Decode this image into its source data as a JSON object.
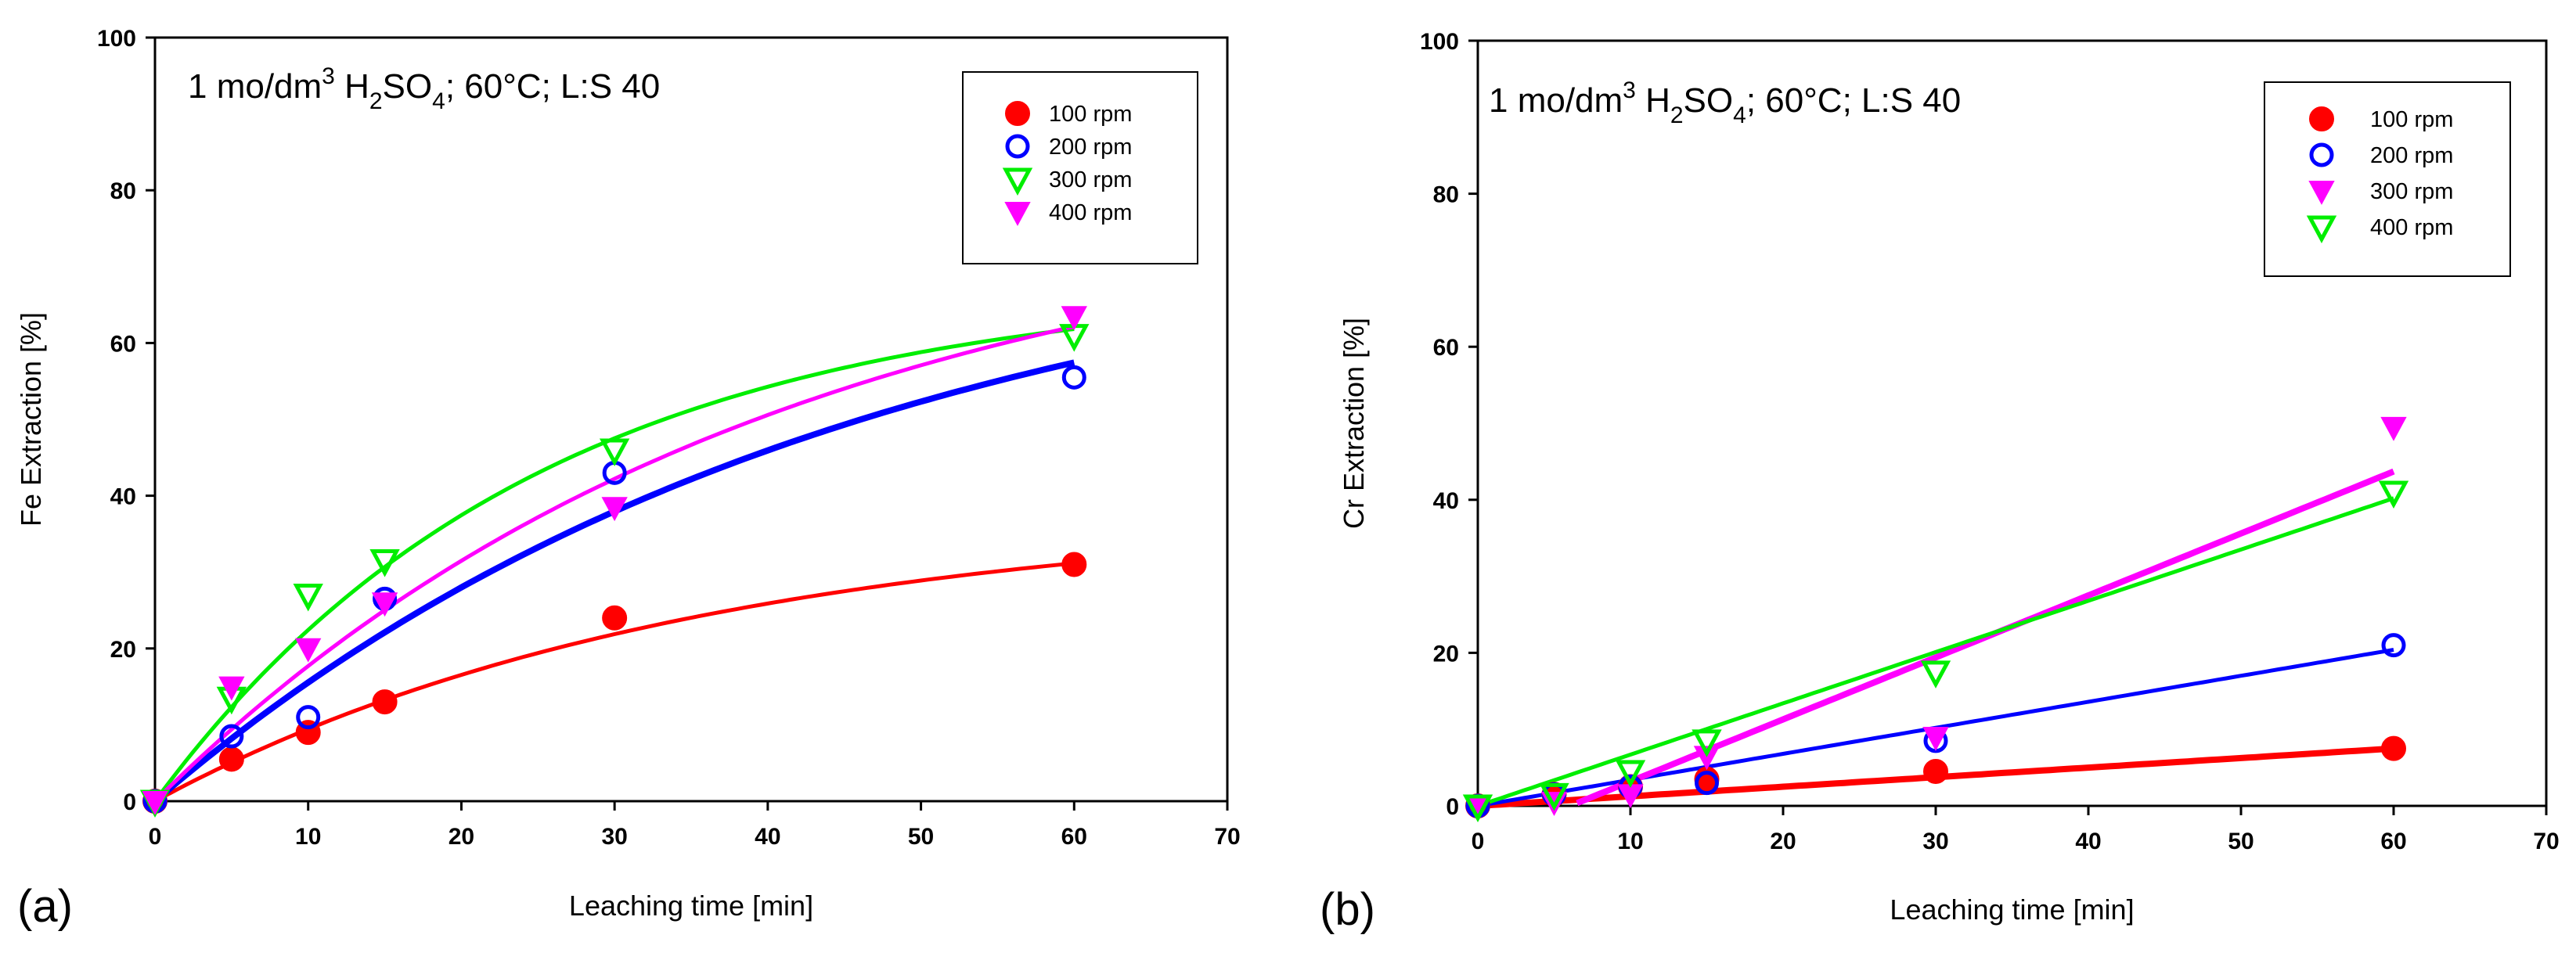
{
  "chart_data": [
    {
      "type": "scatter",
      "panel_label": "(a)",
      "annotation": {
        "prefix": "1 mo/dm",
        "sup": "3",
        "mid": " H",
        "sub1": "2",
        "mid2": "SO",
        "sub2": "4",
        "suffix": "; 60°C; L:S 40"
      },
      "xlabel": "Leaching time [min]",
      "ylabel": "Fe Extraction [%]",
      "xlim": [
        0,
        70
      ],
      "ylim": [
        0,
        100
      ],
      "xticks": [
        "0",
        "10",
        "20",
        "30",
        "40",
        "50",
        "60",
        "70"
      ],
      "yticks": [
        "0",
        "20",
        "40",
        "60",
        "80",
        "100"
      ],
      "grid": false,
      "legend_position": "top-right",
      "fit": "saturation",
      "series": [
        {
          "name": "100 rpm",
          "color": "#ff0000",
          "marker": "circle-filled",
          "x": [
            0,
            5,
            10,
            15,
            30,
            60
          ],
          "y": [
            0,
            5.5,
            9,
            13,
            24,
            31
          ],
          "fit_params": [
            38,
            35
          ]
        },
        {
          "name": "200 rpm",
          "color": "#0000ff",
          "marker": "circle-open",
          "x": [
            0,
            5,
            10,
            15,
            30,
            60
          ],
          "y": [
            0,
            8.5,
            11,
            26.5,
            43,
            55.5
          ],
          "fit_params": [
            78,
            45
          ]
        },
        {
          "name": "300 rpm",
          "color": "#00ee00",
          "marker": "triangle-down-open",
          "x": [
            0,
            5,
            10,
            15,
            30,
            60
          ],
          "y": [
            0,
            13.5,
            27,
            31.5,
            46,
            61
          ],
          "fit_params": [
            68,
            25
          ]
        },
        {
          "name": "400 rpm",
          "color": "#ff00ff",
          "marker": "triangle-down-filled",
          "x": [
            0,
            5,
            10,
            15,
            30,
            60
          ],
          "y": [
            0,
            15,
            20,
            26,
            38.5,
            63.5
          ],
          "fit_params": [
            80,
            40
          ]
        }
      ]
    },
    {
      "type": "scatter",
      "panel_label": "(b)",
      "annotation": {
        "prefix": "1 mo/dm",
        "sup": "3",
        "mid": " H",
        "sub1": "2",
        "mid2": "SO",
        "sub2": "4",
        "suffix": "; 60°C; L:S 40"
      },
      "xlabel": "Leaching time [min]",
      "ylabel": "Cr Extraction [%]",
      "xlim": [
        0,
        70
      ],
      "ylim": [
        0,
        100
      ],
      "xticks": [
        "0",
        "10",
        "20",
        "30",
        "40",
        "50",
        "60",
        "70"
      ],
      "yticks": [
        "0",
        "20",
        "40",
        "60",
        "80",
        "100"
      ],
      "grid": false,
      "legend_position": "top-right",
      "fit": "linear",
      "series": [
        {
          "name": "100 rpm",
          "color": "#ff0000",
          "marker": "circle-filled",
          "x": [
            0,
            5,
            10,
            15,
            30,
            60
          ],
          "y": [
            0,
            1.5,
            2.5,
            3.5,
            4.5,
            7.5
          ],
          "fit_params": [
            0.125,
            0
          ]
        },
        {
          "name": "200 rpm",
          "color": "#0000ff",
          "marker": "circle-open",
          "x": [
            0,
            5,
            10,
            15,
            30,
            60
          ],
          "y": [
            0,
            1.5,
            2.5,
            3,
            8.5,
            21
          ],
          "fit_params": [
            0.34,
            0
          ]
        },
        {
          "name": "300 rpm",
          "color": "#ff00ff",
          "marker": "triangle-down-filled",
          "x": [
            0,
            5,
            10,
            15,
            30,
            60
          ],
          "y": [
            0,
            0.5,
            1.5,
            6.5,
            9,
            49.5
          ],
          "fit_params": [
            0.81,
            -4.9
          ]
        },
        {
          "name": "400 rpm",
          "color": "#00ee00",
          "marker": "triangle-down-open",
          "x": [
            0,
            5,
            10,
            15,
            30,
            60
          ],
          "y": [
            0,
            1.5,
            4.5,
            8.5,
            17.5,
            41
          ],
          "fit_params": [
            0.67,
            0
          ]
        }
      ]
    }
  ]
}
